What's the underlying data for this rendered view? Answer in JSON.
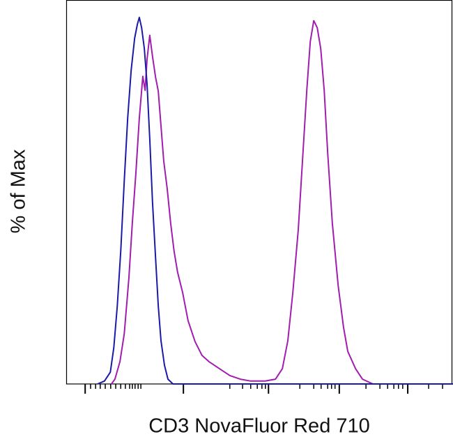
{
  "chart_data": {
    "type": "line",
    "xlabel": "CD3 NovaFluor Red 710",
    "ylabel": "% of Max",
    "xlim": [
      0,
      100
    ],
    "ylim": [
      0,
      100
    ],
    "xticks": [
      4.9,
      30.3,
      52.3,
      70.6,
      88.3
    ],
    "xminorticks": [
      6.3,
      7.6,
      8.8,
      10.1,
      11.5,
      12.8,
      14.1,
      15.3,
      16.4,
      17.1,
      17.8,
      18.6,
      19.3,
      42.3,
      45.6,
      47.7,
      49.4,
      50.6,
      51.5,
      60.4,
      64.0,
      65.9,
      67.6,
      68.6,
      69.5,
      77.5,
      81.1,
      83.1,
      84.7,
      85.9,
      87.0,
      93.7,
      97.3
    ],
    "series": [
      {
        "color": "#a21caf",
        "x": [
          11.7,
          12.6,
          13.9,
          15.0,
          16.2,
          17.1,
          18.0,
          18.9,
          19.8,
          20.4,
          20.9,
          21.6,
          22.3,
          23.1,
          23.8,
          24.5,
          25.2,
          26.1,
          27.0,
          27.9,
          28.8,
          30.1,
          31.5,
          33.3,
          35.1,
          36.9,
          39.6,
          42.3,
          45.0,
          47.7,
          51.4,
          54.1,
          55.9,
          57.3,
          58.6,
          60.0,
          61.1,
          62.2,
          63.1,
          64.0,
          64.9,
          65.8,
          66.7,
          67.6,
          68.8,
          70.3,
          71.7,
          72.8,
          74.8,
          76.6,
          79.3,
          100
        ],
        "values": [
          0,
          1.3,
          6.1,
          13.7,
          28.8,
          44.0,
          57.3,
          72.5,
          83.9,
          80.1,
          88.6,
          95.1,
          89.4,
          83.7,
          79.9,
          70.4,
          60.9,
          53.3,
          43.8,
          36.2,
          30.5,
          24.9,
          17.3,
          11.6,
          7.8,
          6.1,
          4.2,
          2.3,
          1.3,
          0.8,
          0.8,
          1.3,
          4.2,
          11.8,
          25.0,
          42.1,
          61.1,
          80.1,
          93.4,
          99.1,
          97.2,
          91.5,
          80.1,
          63.0,
          44.0,
          26.9,
          15.5,
          8.9,
          4.2,
          1.3,
          0,
          0
        ]
      },
      {
        "color": "#1a1aa6",
        "x": [
          8.1,
          9.9,
          11.4,
          12.3,
          13.2,
          14.1,
          15.0,
          15.9,
          16.8,
          17.7,
          18.4,
          18.9,
          19.5,
          20.2,
          20.9,
          21.6,
          22.3,
          23.1,
          23.8,
          24.5,
          25.4,
          26.3,
          27.6,
          100
        ],
        "values": [
          0,
          0.8,
          3.2,
          9.9,
          21.3,
          36.4,
          55.4,
          72.5,
          85.6,
          94.3,
          98.1,
          100,
          97.2,
          91.5,
          81.8,
          66.8,
          49.7,
          34.5,
          21.3,
          11.8,
          5.1,
          1.3,
          0,
          0
        ]
      }
    ]
  }
}
